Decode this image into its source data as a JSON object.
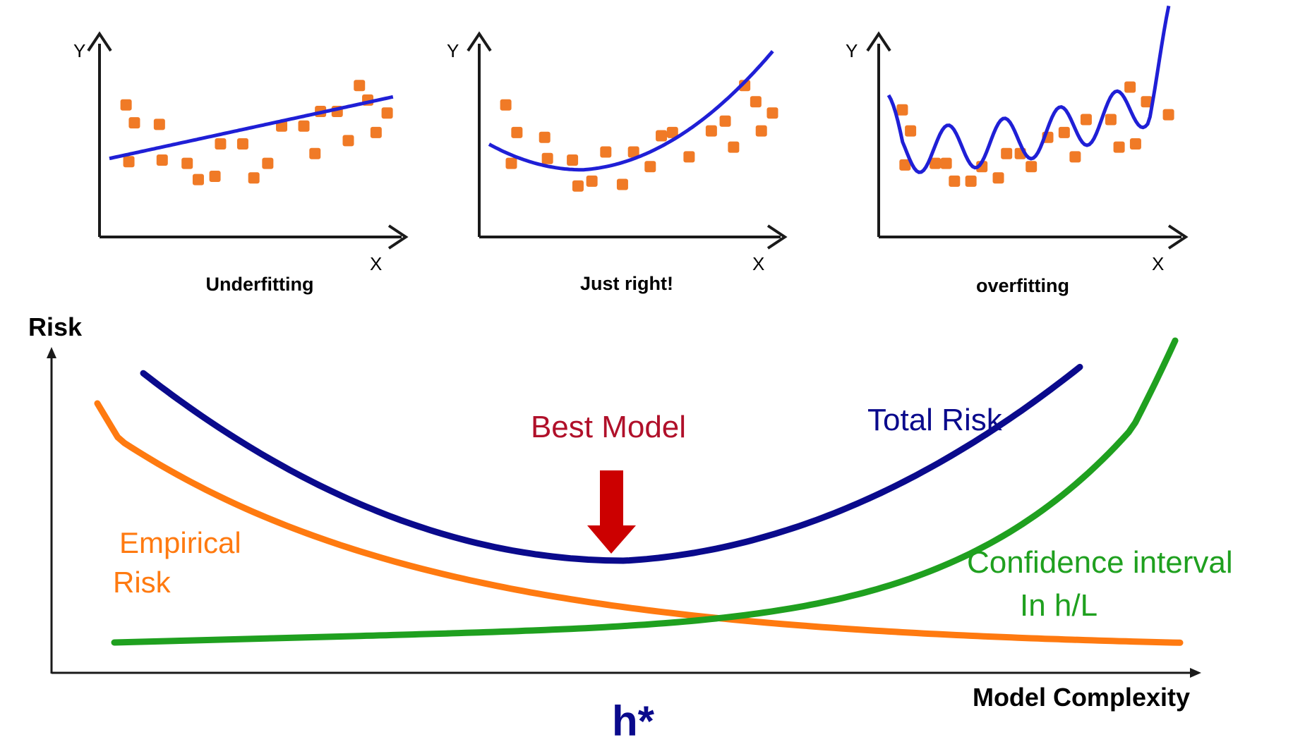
{
  "colors": {
    "marker": "#f07a26",
    "fit_line": "#1f1fd6",
    "axis": "#1a1a1a",
    "total_risk": "#0a0a8c",
    "empirical_risk": "#ff7a10",
    "confidence": "#1fa01f",
    "best_model": "#b0102a",
    "arrow": "#cc0000",
    "h_star": "#0a0a8c"
  },
  "panels": [
    {
      "y_label": "Y",
      "x_label": "X",
      "caption": "Underfitting",
      "points": [
        [
          0.06,
          0.64
        ],
        [
          0.09,
          0.53
        ],
        [
          0.18,
          0.52
        ],
        [
          0.07,
          0.29
        ],
        [
          0.19,
          0.3
        ],
        [
          0.28,
          0.28
        ],
        [
          0.32,
          0.18
        ],
        [
          0.38,
          0.2
        ],
        [
          0.4,
          0.4
        ],
        [
          0.48,
          0.4
        ],
        [
          0.52,
          0.19
        ],
        [
          0.57,
          0.28
        ],
        [
          0.62,
          0.51
        ],
        [
          0.7,
          0.51
        ],
        [
          0.74,
          0.34
        ],
        [
          0.76,
          0.6
        ],
        [
          0.82,
          0.6
        ],
        [
          0.86,
          0.42
        ],
        [
          0.9,
          0.76
        ],
        [
          0.93,
          0.67
        ],
        [
          0.96,
          0.47
        ],
        [
          1.0,
          0.59
        ]
      ],
      "fit": "linear"
    },
    {
      "y_label": "Y",
      "x_label": "X",
      "caption": "Just right!",
      "points": [
        [
          0.06,
          0.64
        ],
        [
          0.1,
          0.47
        ],
        [
          0.08,
          0.28
        ],
        [
          0.2,
          0.44
        ],
        [
          0.21,
          0.31
        ],
        [
          0.3,
          0.3
        ],
        [
          0.32,
          0.14
        ],
        [
          0.37,
          0.17
        ],
        [
          0.42,
          0.35
        ],
        [
          0.48,
          0.15
        ],
        [
          0.52,
          0.35
        ],
        [
          0.58,
          0.26
        ],
        [
          0.62,
          0.45
        ],
        [
          0.66,
          0.47
        ],
        [
          0.72,
          0.32
        ],
        [
          0.8,
          0.48
        ],
        [
          0.85,
          0.54
        ],
        [
          0.88,
          0.38
        ],
        [
          0.92,
          0.76
        ],
        [
          0.96,
          0.66
        ],
        [
          0.98,
          0.48
        ],
        [
          1.02,
          0.59
        ]
      ],
      "fit": "quadratic"
    },
    {
      "y_label": "Y",
      "x_label": "X",
      "caption": "overfitting",
      "points": [
        [
          0.05,
          0.61
        ],
        [
          0.08,
          0.48
        ],
        [
          0.06,
          0.27
        ],
        [
          0.17,
          0.28
        ],
        [
          0.21,
          0.28
        ],
        [
          0.24,
          0.17
        ],
        [
          0.3,
          0.17
        ],
        [
          0.34,
          0.26
        ],
        [
          0.4,
          0.19
        ],
        [
          0.43,
          0.34
        ],
        [
          0.48,
          0.34
        ],
        [
          0.52,
          0.26
        ],
        [
          0.58,
          0.44
        ],
        [
          0.64,
          0.47
        ],
        [
          0.68,
          0.32
        ],
        [
          0.72,
          0.55
        ],
        [
          0.81,
          0.55
        ],
        [
          0.84,
          0.38
        ],
        [
          0.88,
          0.75
        ],
        [
          0.94,
          0.66
        ],
        [
          0.9,
          0.4
        ],
        [
          1.02,
          0.58
        ]
      ],
      "fit": "wiggly"
    }
  ],
  "risk_chart": {
    "y_label": "Risk",
    "x_label": "Model Complexity",
    "best_model_label": "Best Model",
    "total_risk_label": "Total Risk",
    "empirical_risk_label_line1": "Empirical",
    "empirical_risk_label_line2": "Risk",
    "confidence_label_line1": "Confidence interval",
    "confidence_label_line2": "In h/L",
    "optimum_label": "h*"
  }
}
